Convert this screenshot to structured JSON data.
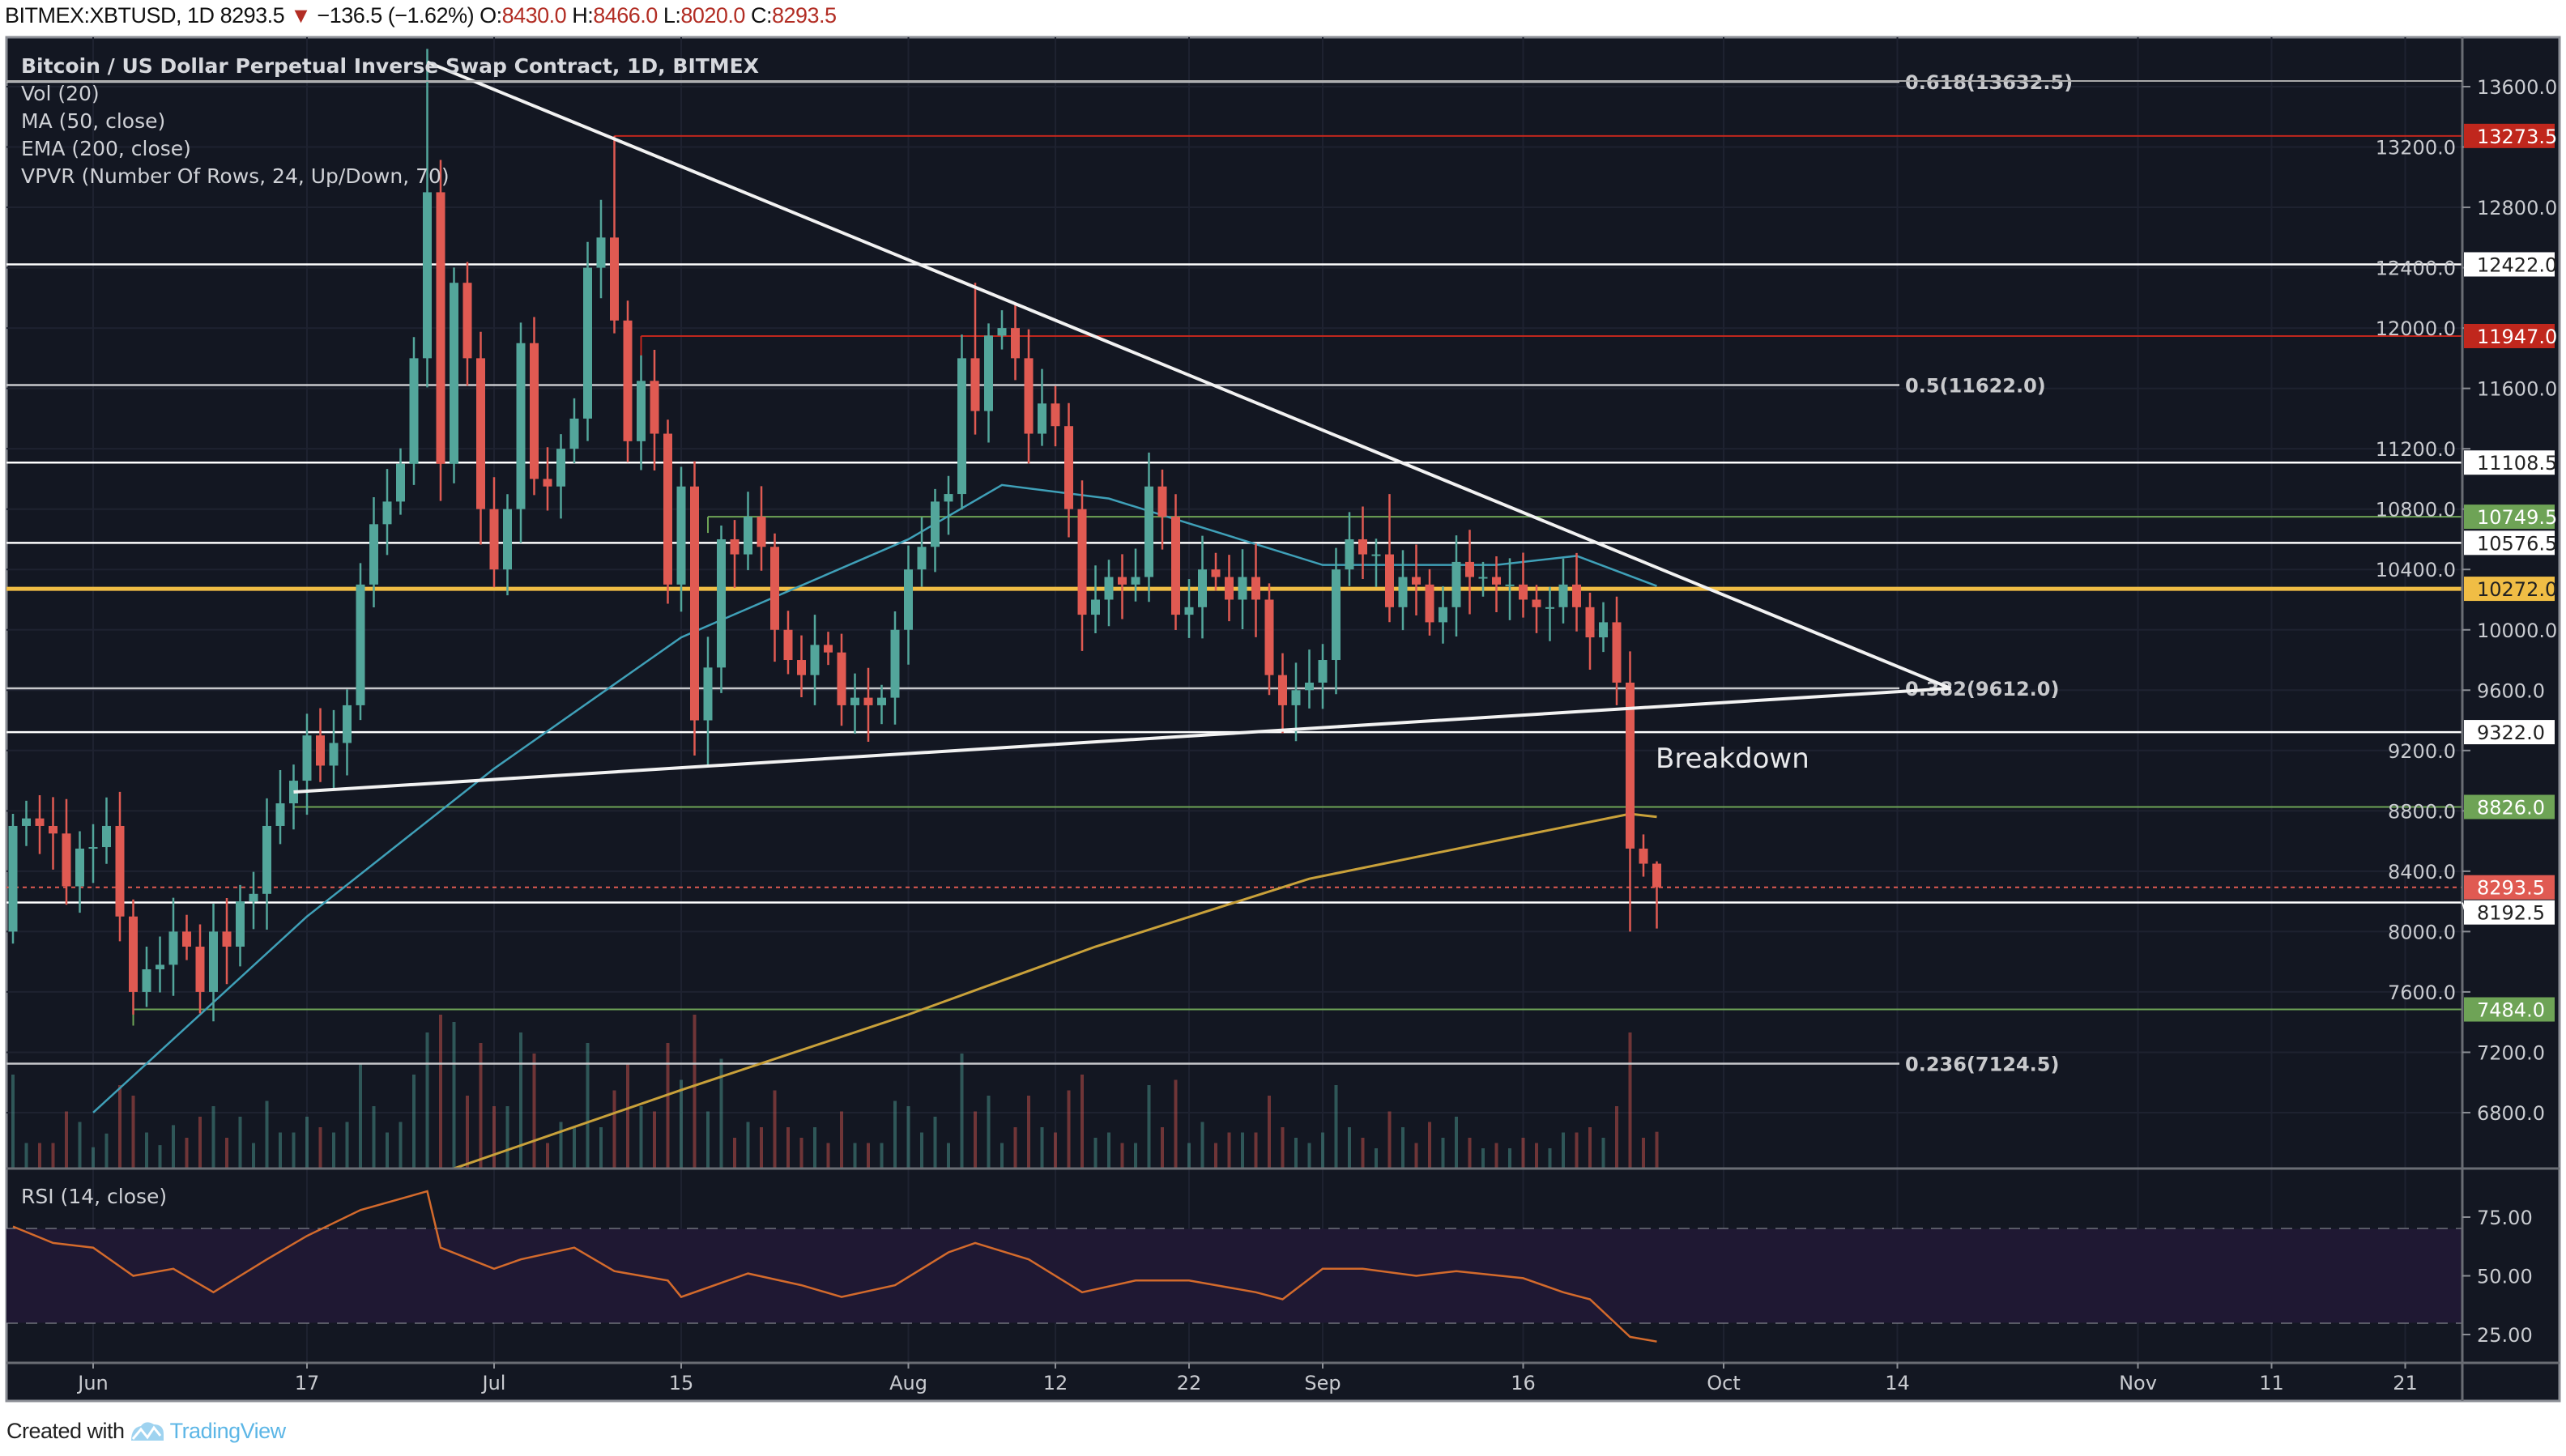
{
  "header": {
    "symbol": "BITMEX:XBTUSD, 1D",
    "last": "8293.5",
    "direction_icon": "triangle-down",
    "change": "−136.5 (−1.62%)",
    "open_label": "O:",
    "open": "8430.0",
    "high_label": "H:",
    "high": "8466.0",
    "low_label": "L:",
    "low": "8020.0",
    "close_label": "C:",
    "close": "8293.5"
  },
  "legend": {
    "title": "Bitcoin / US Dollar Perpetual Inverse Swap Contract, 1D, BITMEX",
    "indicators": [
      "Vol (20)",
      "MA (50, close)",
      "EMA (200, close)",
      "VPVR (Number Of Rows, 24, Up/Down, 70)"
    ],
    "rsi": "RSI (14, close)"
  },
  "annotation": "Breakdown",
  "footer": {
    "created_with": "Created with",
    "brand": "TradingView"
  },
  "colors": {
    "background": "#131722",
    "up": "#53a69b",
    "down": "#e05a52",
    "ma50": "#3fa0b8",
    "ema200": "#c9a13a",
    "rsi_line": "#d36a2c",
    "rsi_band": "#1f1833",
    "level_red": "#c0271d",
    "level_green": "#6ea356",
    "level_orange": "#f0bd45",
    "level_white": "#ffffff"
  },
  "chart_data": {
    "type": "candlestick",
    "first_date": "05-26",
    "close": [
      8700,
      8750,
      8700,
      8650,
      8300,
      8550,
      8560,
      8700,
      8100,
      7600,
      7750,
      7780,
      8000,
      7900,
      7600,
      8000,
      7900,
      8200,
      8250,
      8700,
      8850,
      9000,
      9300,
      9100,
      9250,
      9500,
      10300,
      10700,
      10850,
      11100,
      11800,
      12900,
      11100,
      12300,
      11800,
      10800,
      10400,
      10800,
      11900,
      11000,
      10950,
      11200,
      11400,
      12400,
      12600,
      12050,
      11250,
      11650,
      11300,
      10300,
      10950,
      9400,
      9750,
      10600,
      10500,
      10750,
      10550,
      10000,
      9800,
      9700,
      9900,
      9850,
      9500,
      9550,
      9500,
      9550,
      10000,
      10400,
      10550,
      10850,
      10900,
      11800,
      11450,
      11950,
      12000,
      11800,
      11300,
      11500,
      11350,
      10800,
      10100,
      10200,
      10350,
      10300,
      10350,
      10950,
      10750,
      10100,
      10150,
      10400,
      10350,
      10200,
      10350,
      10200,
      9700,
      9500,
      9600,
      9650,
      9800,
      10400,
      10600,
      10500,
      10500,
      10150,
      10350,
      10300,
      10050,
      10150,
      10450,
      10350,
      10350,
      10300,
      10300,
      10200,
      10150,
      10150,
      10300,
      10150,
      9950,
      10050,
      9650,
      8550,
      8450,
      8293.5
    ],
    "first_open": 8000,
    "wick_extremes": [
      {
        "date": "06-26",
        "high": 13850
      },
      {
        "date": "07-10",
        "high": 13273.5
      },
      {
        "date": "07-09",
        "high": 12850
      },
      {
        "date": "08-06",
        "high": 12300
      },
      {
        "date": "09-06",
        "high": 10900
      },
      {
        "date": "09-24",
        "low": 8000
      },
      {
        "date": "09-26",
        "high": 8466,
        "low": 8020
      },
      {
        "date": "07-17",
        "low": 9100
      },
      {
        "date": "06-04",
        "low": 7450
      }
    ],
    "ma50": [
      [
        "06-01",
        6800
      ],
      [
        "06-17",
        8100
      ],
      [
        "07-01",
        9080
      ],
      [
        "07-15",
        9950
      ],
      [
        "08-01",
        10600
      ],
      [
        "08-08",
        10960
      ],
      [
        "08-16",
        10870
      ],
      [
        "09-01",
        10430
      ],
      [
        "09-14",
        10430
      ],
      [
        "09-20",
        10490
      ],
      [
        "09-26",
        10290
      ]
    ],
    "ema200": [
      [
        "06-28",
        6430
      ],
      [
        "07-15",
        6950
      ],
      [
        "08-01",
        7450
      ],
      [
        "08-15",
        7900
      ],
      [
        "08-31",
        8350
      ],
      [
        "09-15",
        8620
      ],
      [
        "09-24",
        8780
      ],
      [
        "09-26",
        8760
      ]
    ],
    "rsi": [
      [
        "05-26",
        71
      ],
      [
        "05-29",
        64
      ],
      [
        "06-01",
        62
      ],
      [
        "06-04",
        50
      ],
      [
        "06-07",
        53
      ],
      [
        "06-10",
        43
      ],
      [
        "06-14",
        57
      ],
      [
        "06-17",
        67
      ],
      [
        "06-21",
        78
      ],
      [
        "06-26",
        86
      ],
      [
        "06-27",
        62
      ],
      [
        "07-01",
        53
      ],
      [
        "07-03",
        57
      ],
      [
        "07-07",
        62
      ],
      [
        "07-10",
        52
      ],
      [
        "07-14",
        48
      ],
      [
        "07-15",
        41
      ],
      [
        "07-20",
        51
      ],
      [
        "07-24",
        46
      ],
      [
        "07-27",
        41
      ],
      [
        "07-31",
        46
      ],
      [
        "08-04",
        60
      ],
      [
        "08-06",
        64
      ],
      [
        "08-10",
        57
      ],
      [
        "08-14",
        43
      ],
      [
        "08-18",
        48
      ],
      [
        "08-22",
        48
      ],
      [
        "08-27",
        43
      ],
      [
        "08-29",
        40
      ],
      [
        "09-01",
        53
      ],
      [
        "09-04",
        53
      ],
      [
        "09-08",
        50
      ],
      [
        "09-11",
        52
      ],
      [
        "09-16",
        49
      ],
      [
        "09-19",
        43
      ],
      [
        "09-21",
        40
      ],
      [
        "09-24",
        24
      ],
      [
        "09-26",
        22
      ]
    ],
    "rsi_bands": [
      70,
      30
    ],
    "y_ticks": [
      6800,
      7200,
      7600,
      8000,
      8400,
      8800,
      9200,
      9600,
      10000,
      10400,
      10800,
      11200,
      11600,
      12000,
      12400,
      12800,
      13200,
      13600
    ],
    "rsi_ticks": [
      "75.00",
      "50.00",
      "25.00"
    ],
    "x_ticks": [
      [
        "06-01",
        "Jun"
      ],
      [
        "06-17",
        "17"
      ],
      [
        "07-01",
        "Jul"
      ],
      [
        "07-15",
        "15"
      ],
      [
        "08-01",
        "Aug"
      ],
      [
        "08-12",
        "12"
      ],
      [
        "08-22",
        "22"
      ],
      [
        "09-01",
        "Sep"
      ],
      [
        "09-16",
        "16"
      ],
      [
        "10-01",
        "Oct"
      ],
      [
        "10-14",
        "14"
      ],
      [
        "11-01",
        "Nov"
      ],
      [
        "11-11",
        "11"
      ],
      [
        "11-21",
        "21"
      ]
    ],
    "levels": [
      {
        "price": 13273.5,
        "label": "13273.5",
        "color": "red",
        "from": "07-10"
      },
      {
        "price": 12422.0,
        "label": "12422.0",
        "color": "white"
      },
      {
        "price": 11947.0,
        "label": "11947.0",
        "color": "red",
        "from": "07-12"
      },
      {
        "price": 11108.5,
        "label": "11108.5",
        "color": "white"
      },
      {
        "price": 10749.5,
        "label": "10749.5",
        "color": "green",
        "from": "07-17"
      },
      {
        "price": 10576.5,
        "label": "10576.5",
        "color": "white"
      },
      {
        "price": 10272.0,
        "label": "10272.0",
        "color": "orange"
      },
      {
        "price": 9322.0,
        "label": "9322.0",
        "color": "white"
      },
      {
        "price": 8826.0,
        "label": "8826.0",
        "color": "green",
        "from": "06-16"
      },
      {
        "price": 8293.5,
        "label": "8293.5",
        "color": "last"
      },
      {
        "price": 8192.5,
        "label": "8192.5",
        "color": "white"
      },
      {
        "price": 7484.0,
        "label": "7484.0",
        "color": "green",
        "from": "06-04"
      }
    ],
    "fib_levels": [
      {
        "price": 13632.5,
        "label": "0.618(13632.5)"
      },
      {
        "price": 11622.0,
        "label": "0.5(11622.0)"
      },
      {
        "price": 9612.0,
        "label": "0.382(9612.0)"
      },
      {
        "price": 7124.5,
        "label": "0.236(7124.5)"
      }
    ],
    "trendlines": [
      {
        "from": [
          "06-26",
          13763
        ],
        "to": [
          "10-18",
          9612
        ]
      },
      {
        "from": [
          "06-16",
          8925
        ],
        "to": [
          "10-18",
          9612
        ]
      }
    ],
    "annotation_at": [
      "09-25",
      9150
    ]
  }
}
